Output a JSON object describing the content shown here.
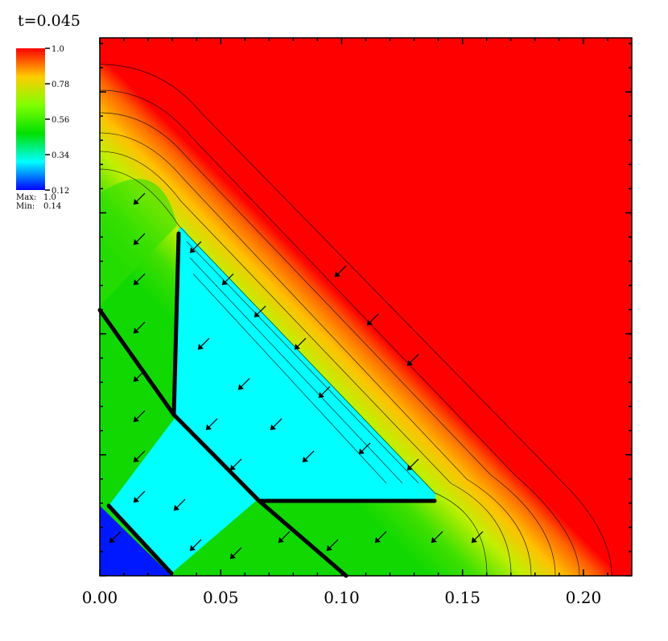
{
  "chart_data": {
    "type": "field",
    "title": "t=0.045",
    "xlim": [
      0,
      0.22
    ],
    "xticks": [
      {
        "value": 0,
        "label": "0.00"
      },
      {
        "value": 0.05,
        "label": "0.05"
      },
      {
        "value": 0.1,
        "label": "0.10"
      },
      {
        "value": 0.15,
        "label": "0.15"
      },
      {
        "value": 0.2,
        "label": "0.20"
      }
    ],
    "colorbar": {
      "ticks": [
        {
          "value": 1,
          "label": "1.0"
        },
        0.78,
        0.56,
        0.34,
        0.12
      ],
      "colors": [
        "#ff0000",
        "#ffcc00",
        "#80ff00",
        "#00e000",
        "#00ffff",
        "#0000ff"
      ],
      "max_label": "Max:",
      "max": {
        "value": 1,
        "label": "1.0"
      },
      "min_label": "Min:",
      "min": 0.14
    }
  }
}
